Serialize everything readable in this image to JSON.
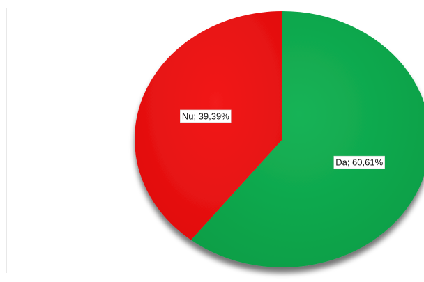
{
  "chart_data": {
    "type": "pie",
    "title": "",
    "slices": [
      {
        "name": "Da",
        "value": 60.61,
        "label": "Da; 60,61%",
        "color": "#0ea64c"
      },
      {
        "name": "Nu",
        "value": 39.39,
        "label": "Nu; 39,39%",
        "color": "#ee1111"
      }
    ],
    "legend": "none",
    "style": "3d-shadow"
  }
}
